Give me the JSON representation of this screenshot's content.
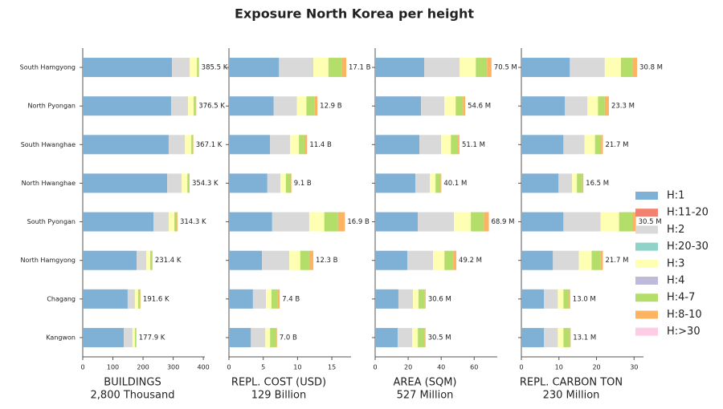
{
  "chart_data": {
    "type": "stacked-barh",
    "title": "Exposure North Korea per height",
    "categories": [
      "South Hamgyong",
      "North Pyongan",
      "South Hwanghae",
      "North Hwanghae",
      "South Pyongan",
      "North Hamgyong",
      "Chagang",
      "Kangwon"
    ],
    "series": [
      {
        "name": "H:1",
        "color": "#7fb0d5"
      },
      {
        "name": "H:11-20",
        "color": "#f4806f"
      },
      {
        "name": "H:2",
        "color": "#d9d9d9"
      },
      {
        "name": "H:20-30",
        "color": "#8dd3c7"
      },
      {
        "name": "H:3",
        "color": "#ffffb3"
      },
      {
        "name": "H:4",
        "color": "#bebada"
      },
      {
        "name": "H:4-7",
        "color": "#b3de69"
      },
      {
        "name": "H:8-10",
        "color": "#fdb462"
      },
      {
        "name": "H:>30",
        "color": "#fccde5"
      }
    ],
    "legend": "right",
    "panels": [
      {
        "xlabel": "BUILDINGS",
        "xlabel2": "2,800 Thousand",
        "xlim": [
          0,
          405
        ],
        "xticks": [
          0,
          100,
          200,
          300,
          400
        ],
        "series": [
          [
            296,
            293,
            285,
            280,
            235,
            179,
            149,
            136
          ],
          [
            0,
            0,
            0,
            0,
            0,
            0,
            0,
            0
          ],
          [
            59,
            56,
            54,
            48,
            50,
            32,
            24,
            29
          ],
          [
            0,
            0,
            0,
            0,
            0,
            0,
            0,
            0
          ],
          [
            24,
            19,
            21,
            19,
            19,
            13,
            11,
            8
          ],
          [
            0,
            0,
            0,
            0,
            0,
            0,
            0,
            0
          ],
          [
            5,
            7,
            6,
            6,
            8,
            6,
            6,
            4
          ],
          [
            1.5,
            1.5,
            1.1,
            1.3,
            2.3,
            1.4,
            1.6,
            0.9
          ],
          [
            0,
            0,
            0,
            0,
            0,
            0,
            0,
            0
          ]
        ],
        "totals": [
          385.5,
          376.5,
          367.1,
          354.3,
          314.3,
          231.4,
          191.6,
          177.9
        ],
        "value_labels": [
          "385.5 K",
          "376.5 K",
          "367.1 K",
          "354.3 K",
          "314.3 K",
          "231.4 K",
          "191.6 K",
          "177.9 K"
        ]
      },
      {
        "xlabel": "REPL. COST (USD)",
        "xlabel2": "129 Billion",
        "xlim": [
          0,
          17.8
        ],
        "xticks": [
          0,
          5,
          10,
          15
        ],
        "series": [
          [
            7.3,
            6.5,
            6.0,
            5.6,
            6.3,
            4.8,
            3.5,
            3.2
          ],
          [
            0,
            0,
            0,
            0,
            0,
            0,
            0,
            0
          ],
          [
            5.0,
            3.4,
            2.9,
            1.9,
            5.4,
            4.0,
            1.9,
            2.1
          ],
          [
            0,
            0,
            0,
            0,
            0,
            0,
            0,
            0
          ],
          [
            2.2,
            1.4,
            1.3,
            0.8,
            2.2,
            1.6,
            0.8,
            0.7
          ],
          [
            0,
            0,
            0,
            0,
            0,
            0,
            0,
            0
          ],
          [
            2.0,
            1.2,
            0.8,
            0.6,
            2.0,
            1.3,
            0.9,
            0.8
          ],
          [
            0.6,
            0.4,
            0.4,
            0.2,
            1.0,
            0.6,
            0.3,
            0.2
          ],
          [
            0,
            0,
            0,
            0,
            0,
            0,
            0,
            0
          ]
        ],
        "totals": [
          17.1,
          12.9,
          11.4,
          9.1,
          16.9,
          12.3,
          7.4,
          7.0
        ],
        "value_labels": [
          "17.1 B",
          "12.9 B",
          "11.4 B",
          "9.1 B",
          "16.9 B",
          "12.3 B",
          "7.4 B",
          "7.0 B"
        ]
      },
      {
        "xlabel": "AREA (SQM)",
        "xlabel2": "527 Million",
        "xlim": [
          0,
          74
        ],
        "xticks": [
          0,
          20,
          40,
          60
        ],
        "series": [
          [
            29.8,
            27.8,
            26.8,
            24.4,
            25.9,
            19.5,
            14.1,
            13.7
          ],
          [
            0,
            0,
            0,
            0,
            0,
            0,
            0,
            0
          ],
          [
            21.4,
            14.2,
            13.2,
            8.8,
            21.9,
            15.6,
            8.8,
            8.7
          ],
          [
            0,
            0,
            0,
            0,
            0,
            0,
            0,
            0
          ],
          [
            9.8,
            6.8,
            5.9,
            3.4,
            10.2,
            6.9,
            3.4,
            3.5
          ],
          [
            0,
            0,
            0,
            0,
            0,
            0,
            0,
            0
          ],
          [
            6.8,
            4.4,
            4.3,
            3.0,
            7.9,
            5.3,
            3.7,
            4.0
          ],
          [
            2.7,
            1.4,
            0.9,
            0.5,
            3.0,
            1.9,
            0.6,
            0.6
          ],
          [
            0,
            0,
            0,
            0,
            0,
            0,
            0,
            0
          ]
        ],
        "totals": [
          70.5,
          54.6,
          51.1,
          40.1,
          68.9,
          49.2,
          30.6,
          30.5
        ],
        "value_labels": [
          "70.5 M",
          "54.6 M",
          "51.1 M",
          "40.1 M",
          "68.9 M",
          "49.2 M",
          "30.6 M",
          "30.5 M"
        ]
      },
      {
        "xlabel": "REPL. CARBON TON",
        "xlabel2": "230 Million",
        "xlim": [
          0,
          32.5
        ],
        "xticks": [
          0,
          10,
          20,
          30
        ],
        "series": [
          [
            12.9,
            11.6,
            11.2,
            9.9,
            11.2,
            8.4,
            6.0,
            6.0
          ],
          [
            0,
            0,
            0,
            0,
            0,
            0,
            0,
            0
          ],
          [
            9.3,
            6.0,
            5.6,
            3.6,
            9.9,
            6.9,
            3.7,
            3.7
          ],
          [
            0,
            0,
            0,
            0,
            0,
            0,
            0,
            0
          ],
          [
            4.3,
            2.8,
            2.8,
            1.3,
            4.9,
            3.4,
            1.5,
            1.5
          ],
          [
            0,
            0,
            0,
            0,
            0,
            0,
            0,
            0
          ],
          [
            3.2,
            1.8,
            1.6,
            1.4,
            3.5,
            2.3,
            1.5,
            1.6
          ],
          [
            1.1,
            1.1,
            0.5,
            0.3,
            1.0,
            0.7,
            0.3,
            0.3
          ],
          [
            0,
            0,
            0,
            0,
            0,
            0,
            0,
            0
          ]
        ],
        "totals": [
          30.8,
          23.3,
          21.7,
          16.5,
          30.5,
          21.7,
          13.0,
          13.1
        ],
        "value_labels": [
          "30.8 M",
          "23.3 M",
          "21.7 M",
          "16.5 M",
          "30.5 M",
          "21.7 M",
          "13.0 M",
          "13.1 M"
        ]
      }
    ]
  }
}
